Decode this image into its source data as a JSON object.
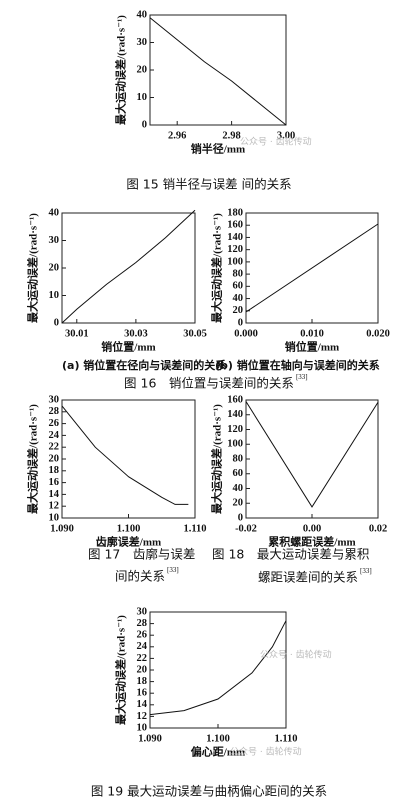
{
  "watermark": "公众号 · 齿轮传动",
  "chart_data": [
    {
      "type": "line",
      "xlabel": "销半径/mm",
      "ylabel": "最大运动误差/(rad·s⁻¹)",
      "caption": [
        "图 15 销半径与误差 间的关系"
      ],
      "x": [
        2.95,
        2.96,
        2.97,
        2.98,
        2.99,
        3.0
      ],
      "values": [
        39,
        31,
        23,
        16,
        8,
        0
      ],
      "color": "#111",
      "xlim": [
        2.95,
        3.0
      ],
      "xticks": [
        2.96,
        2.98,
        {
          "value": 3.0,
          "label": "3.00"
        }
      ],
      "ylim": [
        0,
        40
      ],
      "yticks": [
        0,
        10,
        20,
        30,
        40
      ]
    },
    {
      "type": "line",
      "xlabel": "销位置/mm",
      "ylabel": "最大运动误差/(rad·s⁻¹)",
      "subcaption": "(a) 销位置在径向与误差间的关系",
      "caption": [
        "图 16　销位置与误差间的关系"
      ],
      "caption_ref": "[33]",
      "x": [
        30.005,
        30.01,
        30.02,
        30.025,
        30.03,
        30.04,
        30.05
      ],
      "values": [
        0,
        5,
        14,
        18,
        22,
        31,
        41
      ],
      "color": "#111",
      "xlim": [
        30.005,
        30.05
      ],
      "xticks": [
        30.01,
        30.03,
        30.05
      ],
      "ylim": [
        0,
        40
      ],
      "yticks": [
        0,
        10,
        20,
        30,
        40
      ]
    },
    {
      "type": "line",
      "xlabel": "销位置/mm",
      "ylabel": "最大运动误差/(rad·s⁻¹)",
      "subcaption": "(b) 销位置在轴向与误差间的关系",
      "x": [
        0,
        0.02
      ],
      "values": [
        18,
        162
      ],
      "color": "#111",
      "xlim": [
        0,
        0.02
      ],
      "xticks": [
        {
          "value": 0,
          "label": "0.000"
        },
        {
          "value": 0.01,
          "label": "0.010"
        },
        {
          "value": 0.02,
          "label": "0.020"
        }
      ],
      "ylim": [
        0,
        180
      ],
      "yticks": [
        0,
        20,
        40,
        60,
        80,
        100,
        120,
        140,
        160,
        180
      ]
    },
    {
      "type": "line",
      "xlabel": "齿廓误差/mm",
      "ylabel": "最大运动误差/(rad·s⁻¹)",
      "caption": [
        "图 17　齿廓与误差",
        "间的关系"
      ],
      "caption_ref": "[33]",
      "x": [
        1.09,
        1.095,
        1.1,
        1.105,
        1.107,
        1.109
      ],
      "values": [
        29,
        22,
        17,
        13.5,
        12.3,
        12.3
      ],
      "color": "#111",
      "xlim": [
        1.09,
        1.11
      ],
      "xticks": [
        {
          "value": 1.09,
          "label": "1.090"
        },
        {
          "value": 1.1,
          "label": "1.100"
        },
        {
          "value": 1.11,
          "label": "1.110"
        }
      ],
      "ylim": [
        10,
        30
      ],
      "yticks": [
        10,
        12,
        14,
        16,
        18,
        20,
        22,
        24,
        26,
        28,
        30
      ]
    },
    {
      "type": "line",
      "xlabel": "累积螺距误差/mm",
      "ylabel": "最大运动误差/(rad·s⁻¹)",
      "caption": [
        "图 18　最大运动误差与累积",
        "螺距误差间的关系"
      ],
      "caption_ref": "[33]",
      "x": [
        -0.02,
        0,
        0.02
      ],
      "values": [
        158,
        15,
        157
      ],
      "color": "#111",
      "xlim": [
        -0.02,
        0.02
      ],
      "xticks": [
        -0.02,
        {
          "value": 0,
          "label": "0.00"
        },
        0.02
      ],
      "ylim": [
        0,
        160
      ],
      "yticks": [
        0,
        20,
        40,
        60,
        80,
        100,
        120,
        140,
        160
      ]
    },
    {
      "type": "line",
      "xlabel": "偏心距/mm",
      "ylabel": "最大运动误差/(rad·s⁻¹)",
      "caption": [
        "图 19 最大运动误差与曲柄偏心距间的关系"
      ],
      "x": [
        1.09,
        1.095,
        1.1,
        1.105,
        1.108,
        1.11
      ],
      "values": [
        12.3,
        13,
        15,
        19.5,
        24,
        28.5
      ],
      "color": "#111",
      "xlim": [
        1.09,
        1.11
      ],
      "xticks": [
        {
          "value": 1.09,
          "label": "1.090"
        },
        {
          "value": 1.1,
          "label": "1.100"
        },
        {
          "value": 1.11,
          "label": "1.110"
        }
      ],
      "ylim": [
        10,
        30
      ],
      "yticks": [
        10,
        12,
        14,
        16,
        18,
        20,
        22,
        24,
        26,
        28,
        30
      ]
    }
  ]
}
